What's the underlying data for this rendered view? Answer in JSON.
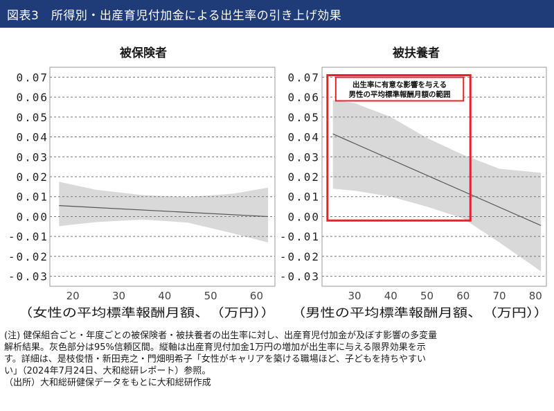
{
  "header": {
    "title": "図表3　所得別・出産育児付加金による出生率の引き上げ効果"
  },
  "chart_data": [
    {
      "type": "line",
      "title": "被保険者",
      "xlabel": "（女性の平均標準報酬月額、　（万円））",
      "ylabel": "",
      "xlim": [
        15,
        64
      ],
      "ylim": [
        -0.035,
        0.075
      ],
      "x_ticks": [
        20,
        30,
        40,
        50,
        60
      ],
      "y_ticks": [
        0.07,
        0.06,
        0.05,
        0.04,
        0.03,
        0.02,
        0.01,
        0.0,
        -0.01,
        -0.02,
        -0.03
      ],
      "y_tick_labels": [
        "0.07",
        "0.06",
        "0.05",
        "0.04",
        "0.03",
        "0.02",
        "0.01",
        "0.00",
        "-0.01",
        "-0.02",
        "-0.03"
      ],
      "grid": "horizontal dashed",
      "series": [
        {
          "name": "marginal effect",
          "x": [
            17,
            62.5
          ],
          "y": [
            0.0055,
            0.0
          ]
        }
      ],
      "band": {
        "name": "95% confidence interval",
        "x": [
          17,
          25,
          35,
          45,
          55,
          62.5
        ],
        "upper": [
          0.0175,
          0.0135,
          0.0108,
          0.0098,
          0.0115,
          0.0145
        ],
        "lower": [
          -0.0048,
          -0.0028,
          -0.0015,
          -0.003,
          -0.0085,
          -0.013
        ]
      }
    },
    {
      "type": "line",
      "title": "被扶養者",
      "xlabel": "（男性の平均標準報酬月額、　（万円））",
      "ylabel": "",
      "xlim": [
        21,
        83
      ],
      "ylim": [
        -0.035,
        0.075
      ],
      "x_ticks": [
        30,
        40,
        50,
        60,
        70,
        80
      ],
      "y_ticks": [
        0.07,
        0.06,
        0.05,
        0.04,
        0.03,
        0.02,
        0.01,
        0.0,
        -0.01,
        -0.02,
        -0.03
      ],
      "y_tick_labels": [
        "0.07",
        "0.06",
        "0.05",
        "0.04",
        "0.03",
        "0.02",
        "0.01",
        "0.00",
        "-0.01",
        "-0.02",
        "-0.03"
      ],
      "grid": "horizontal dashed",
      "series": [
        {
          "name": "marginal effect",
          "x": [
            24,
            81.5
          ],
          "y": [
            0.0415,
            -0.0045
          ]
        }
      ],
      "band": {
        "name": "95% confidence interval",
        "x": [
          24,
          30,
          40,
          50,
          60,
          70,
          81.5
        ],
        "upper": [
          0.0585,
          0.057,
          0.05,
          0.0395,
          0.031,
          0.024,
          0.022
        ],
        "lower": [
          0.014,
          0.013,
          0.01,
          0.005,
          -0.001,
          -0.013,
          -0.0275
        ]
      },
      "annotation": {
        "lines": [
          "出生率に有意な影響を与える",
          "男性の平均標準報酬月額の範囲"
        ],
        "x_range": [
          22.5,
          62
        ],
        "y_range": [
          -0.002,
          0.071
        ],
        "color": "#e8202a"
      }
    }
  ],
  "colors": {
    "header_bg": "#1f3b78",
    "band": "#d9d9d9",
    "line": "#555555",
    "grid": "#777777",
    "frame": "#999999",
    "highlight": "#e8202a"
  },
  "notes": {
    "note_line1": "(注) 健保組合ごと・年度ごとの被保険者・被扶養者の出生率に対し、出産育児付加金が及ぼす影響の多変量",
    "note_line2": "解析結果。灰色部分は95%信頼区間。縦軸は出産育児付加金1万円の増加が出生率に与える限界効果を示",
    "note_line3": "す。詳細は、是枝俊悟・新田尭之・門畑明希子「女性がキャリアを築ける職場ほど、子どもを持ちやすい",
    "note_line4": "い」（2024年7月24日、大和総研レポート）参照。",
    "source": "（出所）大和総研健保データをもとに大和総研作成"
  }
}
